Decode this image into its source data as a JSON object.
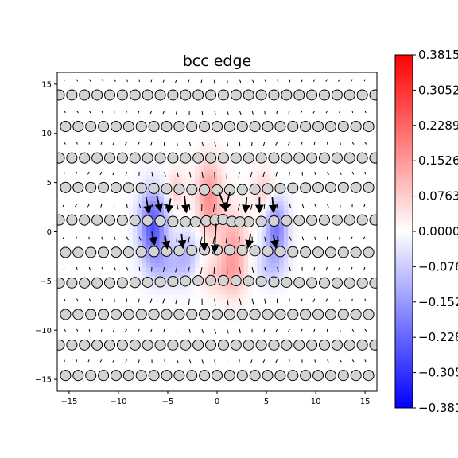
{
  "chart_data": {
    "type": "heatmap",
    "overlay": [
      "scatter",
      "quiver"
    ],
    "title": "bcc edge",
    "xlabel": "",
    "ylabel": "",
    "xlim": [
      -16.2,
      16.2
    ],
    "ylim": [
      -16.2,
      16.2
    ],
    "x_ticks": [
      -15,
      -10,
      -5,
      0,
      5,
      10,
      15
    ],
    "x_tick_labels": [
      "−15",
      "−10",
      "−5",
      "0",
      "5",
      "10",
      "15"
    ],
    "y_ticks": [
      -15,
      -10,
      -5,
      0,
      5,
      10,
      15
    ],
    "y_tick_labels": [
      "−15",
      "−10",
      "−5",
      "0",
      "5",
      "10",
      "15"
    ],
    "colormap": "bwr",
    "colormap_colors": {
      "low": "#0000ff",
      "mid": "#ffffff",
      "high": "#ff0000"
    },
    "color_range": [
      -0.3815,
      0.3815
    ],
    "colorbar_ticks": [
      0.3815,
      0.3052,
      0.2289,
      0.1526,
      0.0763,
      0.0,
      -0.0763,
      -0.1526,
      -0.2289,
      -0.3052,
      -0.3815
    ],
    "colorbar_tick_labels": [
      "0.3815",
      "0.3052",
      "0.2289",
      "0.1526",
      "0.0763",
      "0.0000",
      "−0.0763",
      "−0.1526",
      "−0.2289",
      "−0.3052",
      "−0.3815"
    ],
    "atom_rows": {
      "y": [
        13.9,
        10.7,
        7.5,
        4.5,
        1.2,
        -2.1,
        -5.2,
        -8.4,
        -11.5,
        -14.6
      ],
      "spacing": 1.28,
      "colors": {
        "fill": "#d3d3d3",
        "stroke": "#000000"
      }
    },
    "core_cluster": [
      {
        "x": -2.2,
        "y": 1.0
      },
      {
        "x": -1.1,
        "y": 1.1
      },
      {
        "x": -0.2,
        "y": 1.2
      },
      {
        "x": 0.6,
        "y": 1.25
      },
      {
        "x": 1.5,
        "y": 1.05
      },
      {
        "x": 2.3,
        "y": 1.0
      }
    ],
    "field_features": [
      {
        "x": -6.5,
        "y": 0.5,
        "sx": 1.0,
        "sy": 2.6,
        "value": -0.26
      },
      {
        "x": 6.0,
        "y": 0.3,
        "sx": 0.8,
        "sy": 2.2,
        "value": -0.2
      },
      {
        "x": -3.0,
        "y": -2.5,
        "sx": 0.9,
        "sy": 2.0,
        "value": -0.1
      },
      {
        "x": -0.8,
        "y": 3.5,
        "sx": 0.9,
        "sy": 2.6,
        "value": 0.17
      },
      {
        "x": 1.6,
        "y": -2.0,
        "sx": 1.0,
        "sy": 2.8,
        "value": 0.14
      },
      {
        "x": -4.2,
        "y": 4.3,
        "sx": 0.7,
        "sy": 1.4,
        "value": 0.08
      },
      {
        "x": 4.8,
        "y": 4.2,
        "sx": 0.8,
        "sy": 1.5,
        "value": 0.08
      },
      {
        "x": 0.0,
        "y": -4.5,
        "sx": 2.0,
        "sy": 1.2,
        "value": 0.06
      },
      {
        "x": -5.0,
        "y": -3.5,
        "sx": 1.2,
        "sy": 1.4,
        "value": -0.08
      },
      {
        "x": 5.2,
        "y": -3.5,
        "sx": 1.2,
        "sy": 1.4,
        "value": -0.07
      }
    ],
    "large_vectors": [
      {
        "x": -7.2,
        "y": 3.5,
        "dx": 0.25,
        "dy": -1.3
      },
      {
        "x": -6.1,
        "y": 3.6,
        "dx": 0.3,
        "dy": -1.2
      },
      {
        "x": -4.7,
        "y": 3.4,
        "dx": -0.2,
        "dy": -1.1
      },
      {
        "x": -3.3,
        "y": 3.6,
        "dx": 0.15,
        "dy": -1.3
      },
      {
        "x": -6.6,
        "y": 0.0,
        "dx": 0.2,
        "dy": -1.0
      },
      {
        "x": -5.3,
        "y": -0.3,
        "dx": 0.2,
        "dy": -1.1
      },
      {
        "x": -3.6,
        "y": -0.2,
        "dx": 0.1,
        "dy": -1.1
      },
      {
        "x": -1.3,
        "y": 0.6,
        "dx": 0.0,
        "dy": -2.2
      },
      {
        "x": -0.1,
        "y": 0.8,
        "dx": -0.15,
        "dy": -2.6
      },
      {
        "x": 0.2,
        "y": 4.0,
        "dx": 0.6,
        "dy": -1.5
      },
      {
        "x": 1.3,
        "y": 4.0,
        "dx": -0.4,
        "dy": -1.5
      },
      {
        "x": 3.0,
        "y": 3.5,
        "dx": -0.1,
        "dy": -1.2
      },
      {
        "x": 4.3,
        "y": 3.5,
        "dx": 0.0,
        "dy": -1.2
      },
      {
        "x": 5.6,
        "y": 3.5,
        "dx": 0.1,
        "dy": -1.2
      },
      {
        "x": 3.4,
        "y": -0.2,
        "dx": -0.2,
        "dy": -1.1
      },
      {
        "x": 5.7,
        "y": -0.3,
        "dx": 0.2,
        "dy": -1.0
      }
    ]
  }
}
